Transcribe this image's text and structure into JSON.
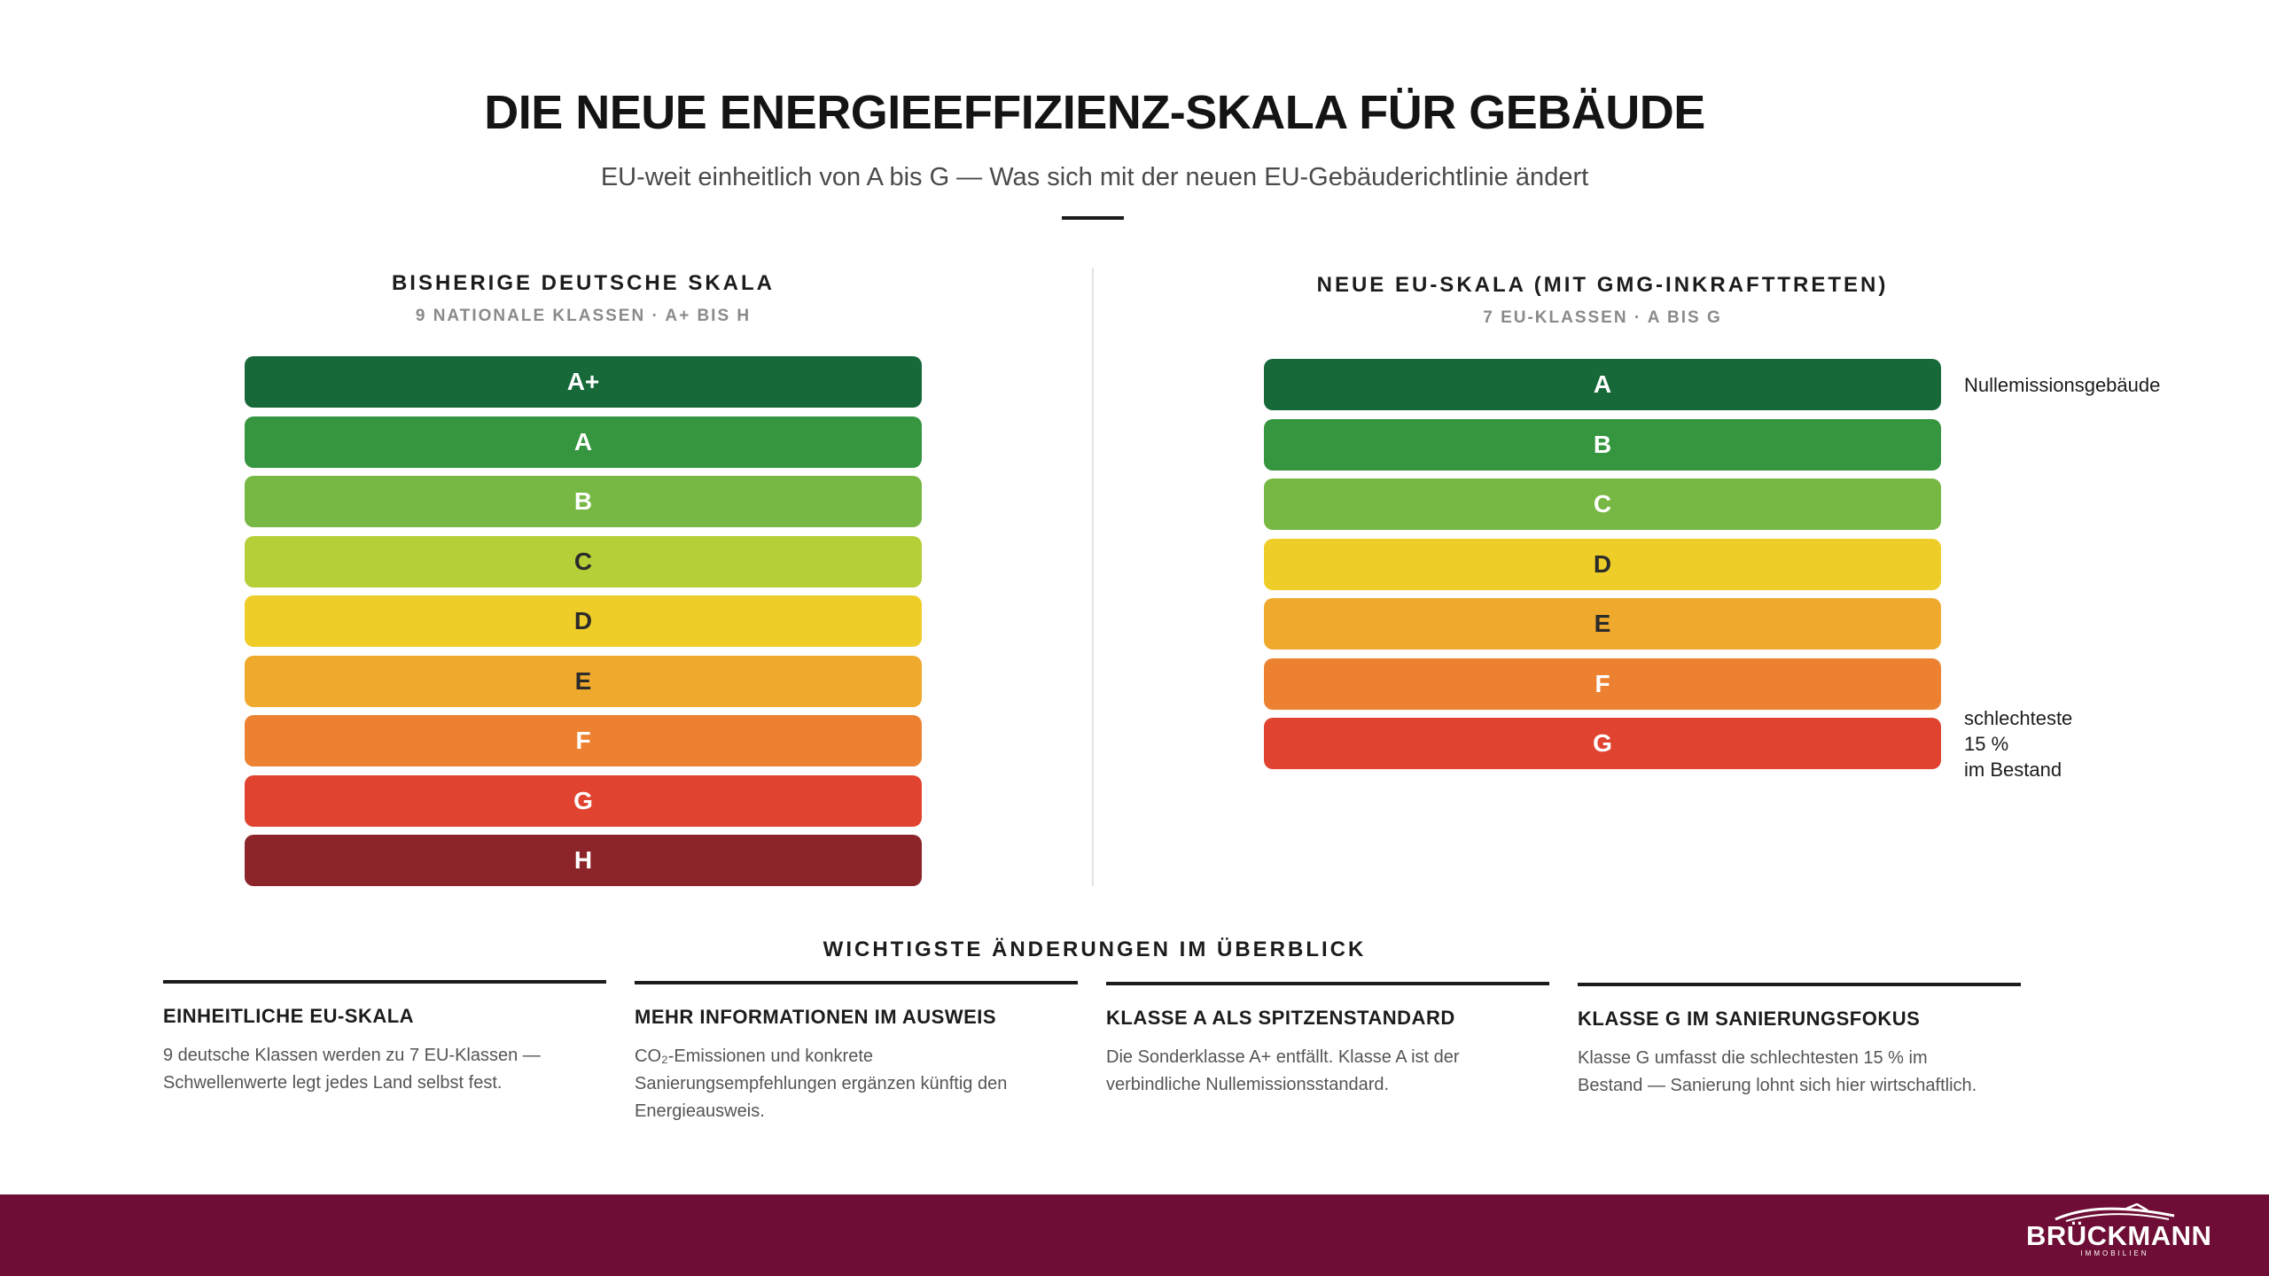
{
  "header": {
    "title": "DIE NEUE ENERGIEEFFIZIENZ-SKALA FÜR GEBÄUDE",
    "subtitle": "EU-weit einheitlich von A bis G — Was sich mit der neuen EU-Gebäuderichtlinie ändert"
  },
  "old_scale": {
    "heading": "BISHERIGE DEUTSCHE SKALA",
    "subheading": "9 NATIONALE KLASSEN · A+ BIS H",
    "classes": [
      {
        "label": "A+",
        "color": "#17693a",
        "text_color": "#ffffff"
      },
      {
        "label": "A",
        "color": "#35963f",
        "text_color": "#ffffff"
      },
      {
        "label": "B",
        "color": "#76b843",
        "text_color": "#ffffff"
      },
      {
        "label": "C",
        "color": "#b4cf37",
        "text_color": "#2b2b2b"
      },
      {
        "label": "D",
        "color": "#efcd28",
        "text_color": "#2b2b2b"
      },
      {
        "label": "E",
        "color": "#efa92d",
        "text_color": "#2b2b2b"
      },
      {
        "label": "F",
        "color": "#ec8231",
        "text_color": "#ffffff"
      },
      {
        "label": "G",
        "color": "#e04431",
        "text_color": "#ffffff"
      },
      {
        "label": "H",
        "color": "#8c2529",
        "text_color": "#ffffff"
      }
    ]
  },
  "new_scale": {
    "heading": "NEUE EU-SKALA (MIT GMG-INKRAFTTRETEN)",
    "subheading": "7 EU-KLASSEN · A BIS G",
    "classes": [
      {
        "label": "A",
        "color": "#17693a",
        "text_color": "#ffffff"
      },
      {
        "label": "B",
        "color": "#35963f",
        "text_color": "#ffffff"
      },
      {
        "label": "C",
        "color": "#76b843",
        "text_color": "#ffffff"
      },
      {
        "label": "D",
        "color": "#efcd28",
        "text_color": "#2b2b2b"
      },
      {
        "label": "E",
        "color": "#efa92d",
        "text_color": "#2b2b2b"
      },
      {
        "label": "F",
        "color": "#ec8231",
        "text_color": "#ffffff"
      },
      {
        "label": "G",
        "color": "#e04431",
        "text_color": "#ffffff"
      }
    ],
    "note_top": "Nullemissionsgebäude",
    "note_bottom": [
      "schlechteste",
      "15 %",
      "im Bestand"
    ]
  },
  "overview": {
    "heading": "WICHTIGSTE ÄNDERUNGEN IM ÜBERBLICK",
    "cards": [
      {
        "title": "EINHEITLICHE EU-SKALA",
        "lines": [
          "9 deutsche Klassen werden zu 7 EU-Klassen —",
          "Schwellenwerte legt jedes Land selbst fest."
        ]
      },
      {
        "title": "MEHR INFORMATIONEN IM AUSWEIS",
        "lines": [
          "CO₂-Emissionen und konkrete",
          "Sanierungsempfehlungen ergänzen künftig den",
          "Energieausweis."
        ]
      },
      {
        "title": "KLASSE A ALS SPITZENSTANDARD",
        "lines": [
          "Die Sonderklasse A+ entfällt. Klasse A ist der",
          "verbindliche Nullemissionsstandard."
        ]
      },
      {
        "title": "KLASSE G IM SANIERUNGSFOKUS",
        "lines": [
          "Klasse G umfasst die schlechtesten 15 % im",
          "Bestand — Sanierung lohnt sich hier wirtschaftlich."
        ]
      }
    ]
  },
  "footer": {
    "logo_name": "BRÜCKMANN",
    "logo_sub": "IMMOBILIEN",
    "color": "#6e0d35"
  }
}
